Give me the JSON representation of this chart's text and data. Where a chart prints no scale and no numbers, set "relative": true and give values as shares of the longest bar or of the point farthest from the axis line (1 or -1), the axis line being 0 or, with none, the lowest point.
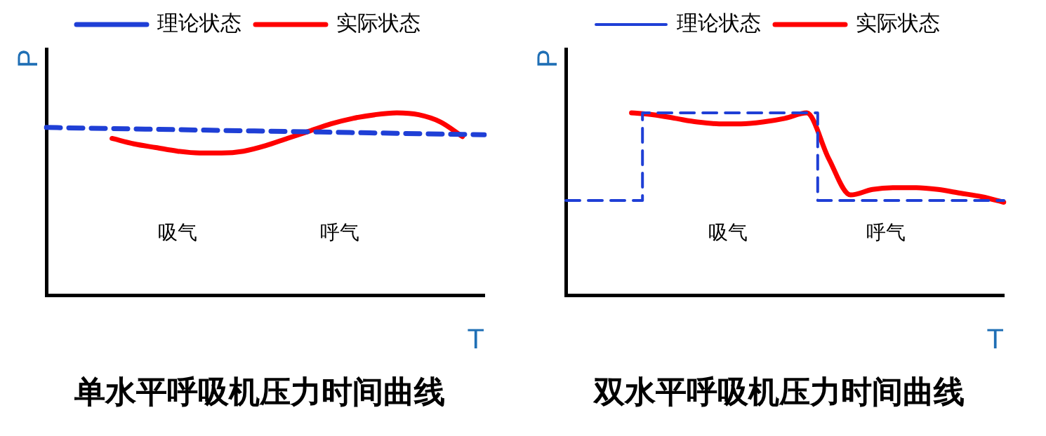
{
  "chart_data": [
    {
      "type": "line",
      "title": "单水平呼吸机压力时间曲线",
      "xlabel": "T",
      "ylabel": "P",
      "relative": true,
      "legend": "top",
      "grid": false,
      "annotations": [
        "吸气",
        "呼气"
      ],
      "categories": [
        null,
        null,
        null,
        null,
        null,
        null,
        null,
        null,
        null,
        null,
        null,
        null,
        null,
        null,
        null,
        null,
        null,
        null,
        null,
        null,
        null
      ],
      "series": [
        {
          "name": "理论状态",
          "color": "#1f3fd6",
          "line_style": "dashed",
          "values": [
            0.92,
            0.918,
            0.916,
            0.914,
            0.912,
            0.91,
            0.908,
            0.906,
            0.904,
            0.902,
            0.9,
            0.898,
            0.896,
            0.894,
            0.892,
            0.89,
            0.888,
            0.886,
            0.884,
            0.882,
            0.88
          ]
        },
        {
          "name": "实际状态",
          "color": "#ff0000",
          "line_style": "solid",
          "values": [
            null,
            null,
            null,
            0.86,
            0.83,
            0.81,
            0.79,
            0.78,
            0.78,
            0.79,
            0.82,
            0.86,
            0.9,
            0.94,
            0.97,
            0.99,
            1.0,
            0.99,
            0.95,
            0.87,
            null
          ]
        }
      ]
    },
    {
      "type": "line",
      "title": "双水平呼吸机压力时间曲线",
      "xlabel": "T",
      "ylabel": "P",
      "relative": true,
      "legend": "top",
      "grid": false,
      "annotations": [
        "吸气",
        "呼气"
      ],
      "categories": [
        null,
        null,
        null,
        null,
        null,
        null,
        null,
        null,
        null,
        null,
        null,
        null,
        null,
        null,
        null,
        null,
        null,
        null,
        null,
        null,
        null
      ],
      "series": [
        {
          "name": "理论状态",
          "type": "step",
          "color": "#1f3fd6",
          "line_style": "dashed",
          "values": [
            0.52,
            0.52,
            0.52,
            0.52,
            1.0,
            1.0,
            1.0,
            1.0,
            1.0,
            1.0,
            1.0,
            1.0,
            0.52,
            0.52,
            0.52,
            0.52,
            0.52,
            0.52,
            0.52,
            0.52,
            0.52
          ]
        },
        {
          "name": "实际状态",
          "color": "#ff0000",
          "line_style": "solid",
          "values": [
            null,
            null,
            null,
            1.0,
            0.99,
            0.97,
            0.95,
            0.94,
            0.94,
            0.95,
            0.97,
            1.0,
            0.75,
            0.55,
            0.58,
            0.59,
            0.59,
            0.58,
            0.56,
            0.54,
            0.51
          ]
        }
      ]
    }
  ]
}
